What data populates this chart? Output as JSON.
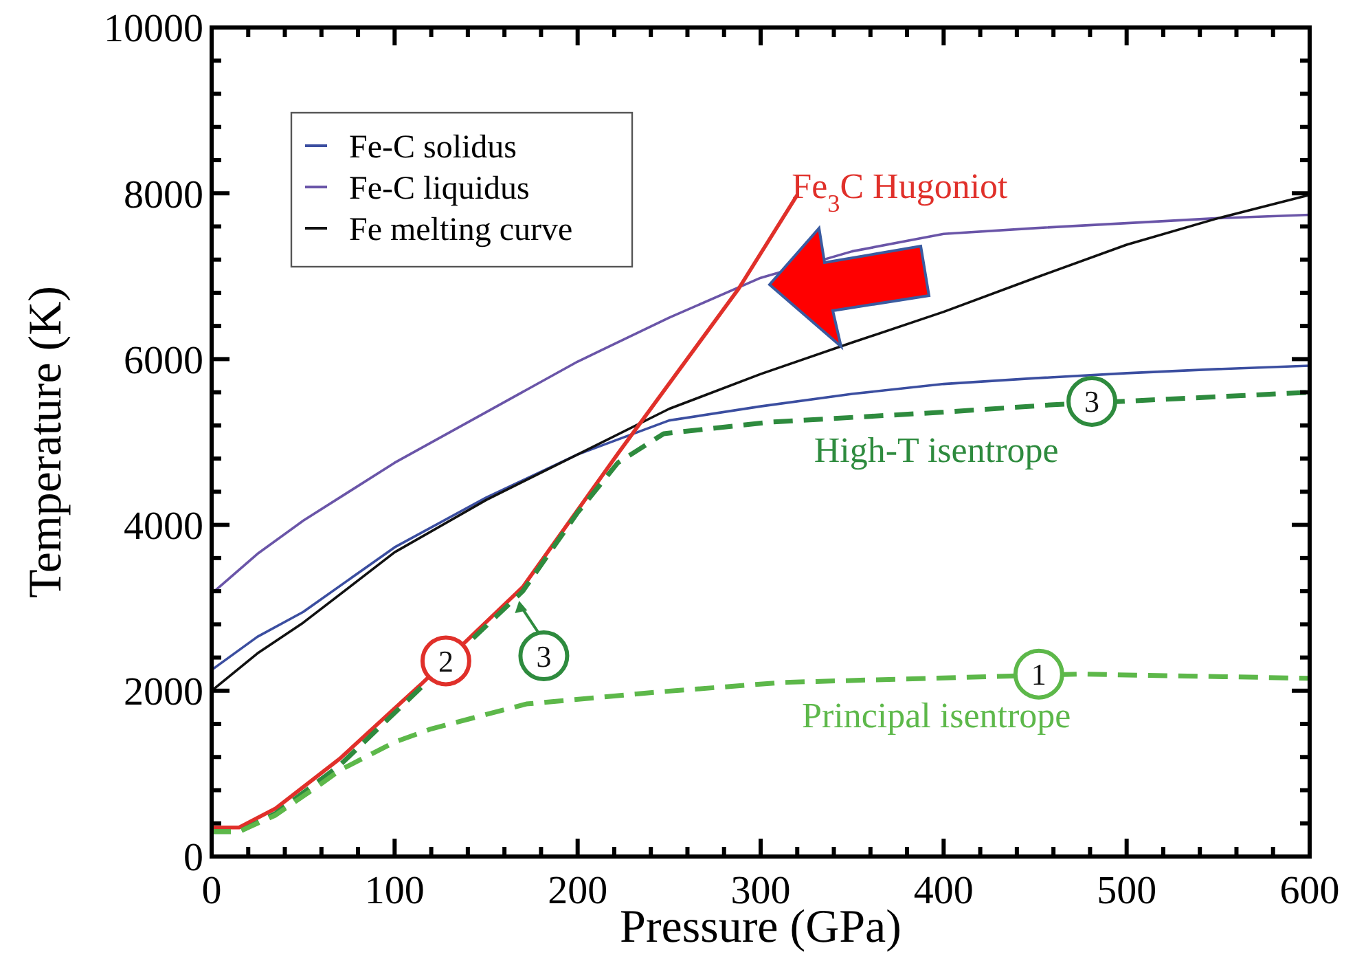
{
  "chart_data": {
    "type": "line",
    "xlabel": "Pressure (GPa)",
    "ylabel": "Temperature (K)",
    "xlim": [
      0,
      600
    ],
    "ylim": [
      0,
      10000
    ],
    "xticks": [
      0,
      {
        "value": 20,
        "label": null
      },
      {
        "value": 40,
        "label": null
      },
      {
        "value": 60,
        "label": null
      },
      {
        "value": 80,
        "label": null
      },
      100,
      {
        "value": 120,
        "label": null
      },
      {
        "value": 140,
        "label": null
      },
      {
        "value": 160,
        "label": null
      },
      {
        "value": 180,
        "label": null
      },
      200,
      {
        "value": 220,
        "label": null
      },
      {
        "value": 240,
        "label": null
      },
      {
        "value": 260,
        "label": null
      },
      {
        "value": 280,
        "label": null
      },
      300,
      {
        "value": 320,
        "label": null
      },
      {
        "value": 340,
        "label": null
      },
      {
        "value": 360,
        "label": null
      },
      {
        "value": 380,
        "label": null
      },
      400,
      {
        "value": 420,
        "label": null
      },
      {
        "value": 440,
        "label": null
      },
      {
        "value": 460,
        "label": null
      },
      {
        "value": 480,
        "label": null
      },
      500,
      {
        "value": 520,
        "label": null
      },
      {
        "value": 540,
        "label": null
      },
      {
        "value": 560,
        "label": null
      },
      {
        "value": 580,
        "label": null
      },
      600
    ],
    "yticks": [
      0,
      {
        "value": 400,
        "label": null
      },
      {
        "value": 800,
        "label": null
      },
      {
        "value": 1200,
        "label": null
      },
      {
        "value": 1600,
        "label": null
      },
      2000,
      {
        "value": 2400,
        "label": null
      },
      {
        "value": 2800,
        "label": null
      },
      {
        "value": 3200,
        "label": null
      },
      {
        "value": 3600,
        "label": null
      },
      4000,
      {
        "value": 4400,
        "label": null
      },
      {
        "value": 4800,
        "label": null
      },
      {
        "value": 5200,
        "label": null
      },
      {
        "value": 5600,
        "label": null
      },
      6000,
      {
        "value": 6400,
        "label": null
      },
      {
        "value": 6800,
        "label": null
      },
      {
        "value": 7200,
        "label": null
      },
      {
        "value": 7600,
        "label": null
      },
      8000,
      {
        "value": 8400,
        "label": null
      },
      {
        "value": 8800,
        "label": null
      },
      {
        "value": 9200,
        "label": null
      },
      {
        "value": 9600,
        "label": null
      },
      10000
    ],
    "grid": false,
    "legend": "top left",
    "marker": "none",
    "series": [
      {
        "name": "Fe-C solidus",
        "color": "#3b4ea0",
        "line_style": "solid",
        "x": [
          0,
          25,
          50,
          100,
          150,
          200,
          250,
          300,
          350,
          400,
          450,
          500,
          550,
          600
        ],
        "values": [
          2250,
          2650,
          2950,
          3730,
          4330,
          4850,
          5260,
          5430,
          5580,
          5700,
          5770,
          5830,
          5880,
          5920
        ]
      },
      {
        "name": "Fe-C liquidus",
        "color": "#6a55a8",
        "line_style": "solid",
        "x": [
          0,
          25,
          50,
          75,
          100,
          150,
          200,
          250,
          300,
          350,
          400,
          450,
          500,
          550,
          600
        ],
        "values": [
          3170,
          3650,
          4050,
          4400,
          4750,
          5360,
          5970,
          6500,
          6980,
          7300,
          7510,
          7580,
          7640,
          7700,
          7740
        ]
      },
      {
        "name": "Fe melting curve",
        "color": "#111111",
        "line_style": "solid",
        "x": [
          0,
          25,
          50,
          100,
          150,
          200,
          250,
          300,
          350,
          400,
          450,
          500,
          550,
          600
        ],
        "values": [
          2000,
          2450,
          2820,
          3670,
          4300,
          4850,
          5400,
          5820,
          6200,
          6570,
          6980,
          7380,
          7700,
          7980
        ]
      },
      {
        "color": "#e0302a",
        "line_style": "solid",
        "x": [
          0,
          15,
          35,
          70,
          115,
          170,
          222,
          288,
          320
        ],
        "values": [
          350,
          350,
          580,
          1180,
          2090,
          3250,
          4860,
          6850,
          7980
        ]
      },
      {
        "color": "#2e8b3e",
        "line_style": "dashed",
        "x": [
          0,
          15,
          35,
          70,
          115,
          170,
          200,
          222,
          247,
          305,
          400,
          460,
          600
        ],
        "values": [
          300,
          300,
          520,
          1100,
          2050,
          3200,
          4150,
          4750,
          5100,
          5240,
          5360,
          5450,
          5600
        ]
      },
      {
        "color": "#5db84a",
        "line_style": "dashed",
        "x": [
          0,
          15,
          35,
          60,
          70,
          100,
          120,
          172,
          247,
          312,
          425,
          475,
          600
        ],
        "values": [
          300,
          300,
          500,
          880,
          1040,
          1380,
          1540,
          1840,
          1990,
          2100,
          2170,
          2200,
          2150
        ]
      }
    ],
    "annotations": [
      "Fe$_{3}$C Hugoniot",
      "High-T isentrope",
      "Principal isentrope",
      {
        "text": "2",
        "x": 128,
        "y": 2360
      },
      {
        "text": "3",
        "x": 168,
        "y": 3150
      },
      {
        "text": "3",
        "x": 481,
        "y": 5490
      },
      {
        "text": "1",
        "x": 452,
        "y": 2200
      }
    ]
  }
}
